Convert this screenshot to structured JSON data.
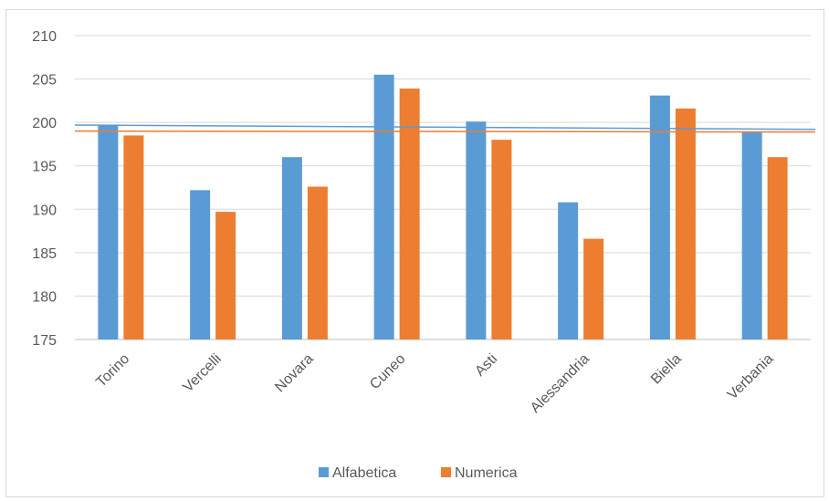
{
  "chart_data": {
    "type": "bar",
    "title": "",
    "xlabel": "",
    "ylabel": "",
    "categories": [
      "Torino",
      "Vercelli",
      "Novara",
      "Cuneo",
      "Asti",
      "Alessandria",
      "Biella",
      "Verbania"
    ],
    "series": [
      {
        "name": "Alfabetica",
        "color": "#5b9bd5",
        "values": [
          199.7,
          192.2,
          196.0,
          205.5,
          200.1,
          190.8,
          203.1,
          198.9
        ]
      },
      {
        "name": "Numerica",
        "color": "#ed7d31",
        "values": [
          198.5,
          189.7,
          192.6,
          203.9,
          198.0,
          186.6,
          201.6,
          196.0
        ]
      }
    ],
    "reference_lines": [
      {
        "series": "Alfabetica",
        "color": "#5b9bd5",
        "value_start": 199.7,
        "value_end": 199.2
      },
      {
        "series": "Numerica",
        "color": "#ed7d31",
        "value_start": 199.0,
        "value_end": 198.9
      }
    ],
    "ylim": [
      175,
      210
    ],
    "yticks": [
      175,
      180,
      185,
      190,
      195,
      200,
      205,
      210
    ],
    "grid": true,
    "legend": "bottom-center"
  }
}
